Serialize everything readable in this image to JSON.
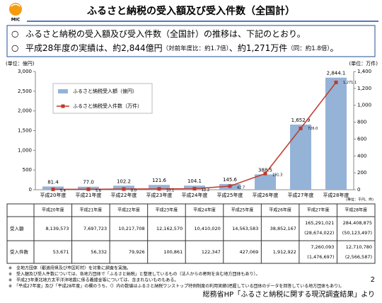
{
  "header": {
    "logo": "MIC",
    "title": "ふるさと納税の受入額及び受入件数（全国計）"
  },
  "bullets": [
    {
      "mark": "○",
      "parts": [
        "ふるさと納税の受入額及び受入件数（全国計）の推移は、下記のとおり。"
      ]
    },
    {
      "mark": "○",
      "parts": [
        "平成28年度の実績は、約2,844億円",
        "（対前年度比：約1.7倍）",
        "、約1,271万件",
        "（同：約1.8倍）",
        "。"
      ]
    }
  ],
  "chart_data": {
    "type": "bar",
    "y_label": "(単位：億円)",
    "y2_label": "(単位：万件)",
    "unit_note": "(単位：千円、件)",
    "categories": [
      "平成20年度",
      "平成21年度",
      "平成22年度",
      "平成23年度",
      "平成24年度",
      "平成25年度",
      "平成26年度",
      "平成27年度",
      "平成28年度"
    ],
    "series": [
      {
        "name": "ふるさと納税受入額（億円）",
        "type": "bar",
        "color": "#95b3d7",
        "values": [
          81.4,
          77.0,
          102.2,
          121.6,
          104.1,
          145.6,
          388.5,
          1652.9,
          2844.1
        ],
        "value_labels": [
          "81.4",
          "77.0",
          "102.2",
          "121.6",
          "104.1",
          "145.6",
          "388.5",
          "1,652.9",
          "2,844.1"
        ]
      },
      {
        "name": "ふるさと納税受入件数（万件）",
        "type": "line",
        "axis": "y2",
        "color": "#c0392b",
        "values": [
          5.4,
          5.6,
          8.0,
          10.1,
          12.2,
          42.7,
          191.3,
          726.0,
          1271.1
        ],
        "value_labels": [
          "5.4",
          "5.6",
          "8.0",
          "10.1",
          "12.2",
          "42.7",
          "191.3",
          "726.0",
          "1,271.1"
        ]
      }
    ],
    "ylim": [
      0,
      3000
    ],
    "yticks": [
      0,
      500,
      {
        "value": 1000,
        "label": "1,000"
      },
      {
        "value": 1500,
        "label": "1,500"
      },
      {
        "value": 2000,
        "label": "2,000"
      },
      {
        "value": 2500,
        "label": "2,500"
      },
      {
        "value": 3000,
        "label": "3,000"
      }
    ],
    "y2lim": [
      0,
      1400
    ],
    "y2ticks": [
      0,
      200,
      400,
      600,
      800,
      {
        "value": 1000,
        "label": "1,000"
      },
      {
        "value": 1200,
        "label": "1,200"
      },
      {
        "value": 1400,
        "label": "1,400"
      }
    ],
    "legend": "upper left",
    "grid": false
  },
  "table": {
    "header": [
      "平成20年度",
      "平成21年度",
      "平成22年度",
      "平成23年度",
      "平成24年度",
      "平成25年度",
      "平成26年度",
      "平成27年度",
      "平成28年度"
    ],
    "rows": [
      {
        "label": "受入額",
        "cells": [
          [
            "8,139,573"
          ],
          [
            "7,697,723"
          ],
          [
            "10,217,708"
          ],
          [
            "12,162,570"
          ],
          [
            "10,410,020"
          ],
          [
            "14,563,583"
          ],
          [
            "38,852,167"
          ],
          [
            "165,291,021",
            "(28,674,022)"
          ],
          [
            "284,408,875",
            "(50,123,497)"
          ]
        ]
      },
      {
        "label": "受入件数",
        "cells": [
          [
            "53,671"
          ],
          [
            "56,332"
          ],
          [
            "79,926"
          ],
          [
            "100,861"
          ],
          [
            "122,347"
          ],
          [
            "427,069"
          ],
          [
            "1,912,922"
          ],
          [
            "7,260,093",
            "(1,476,697)"
          ],
          [
            "12,710,780",
            "(2,566,587)"
          ]
        ]
      }
    ]
  },
  "notes": [
    "※　全地方団体（都道府県及び市区町村）を対象に調査を実施。",
    "※　受入額及び受入件数については、各地方団体で「ふるさと納税」と整理しているもの（法人からの寄附を含む地方団体もあり）。",
    "※　平成23年東北地方太平洋沖地震に係る義援金等については、含まれないものもある。",
    "※　「平成27年度」及び「平成28年度」の欄のうち、（）内の数値はふるさと納税ワンストップ特例制度の利用実績(把握している団体のデータを回答している地方団体もあり)。"
  ],
  "page_number": "2",
  "source": "総務省HP「ふるさと納税に関する現況調査結果」より"
}
